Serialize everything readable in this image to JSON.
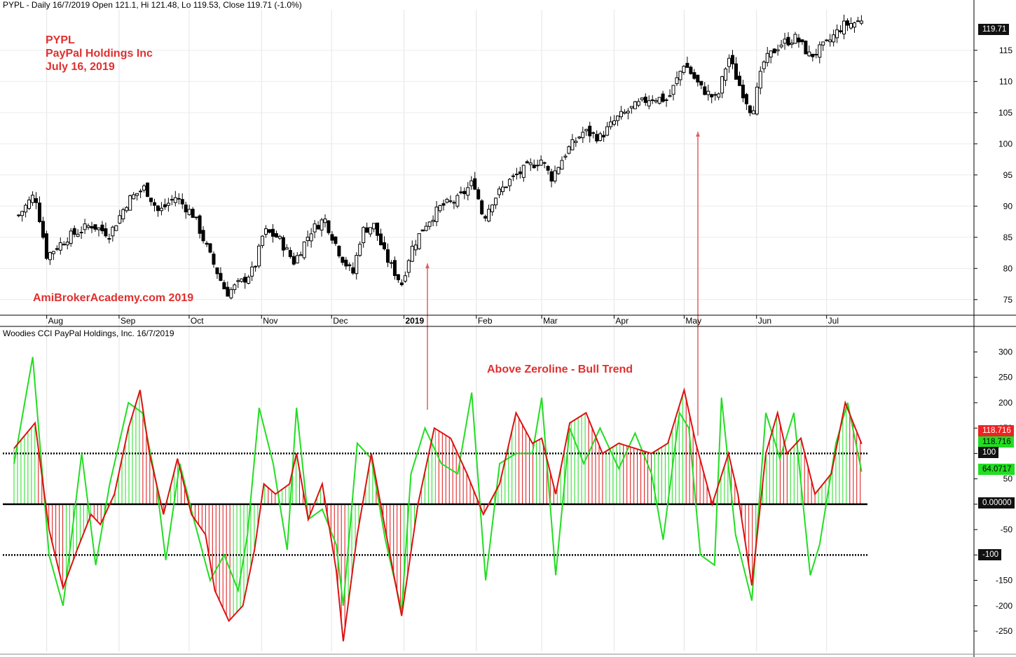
{
  "price_panel": {
    "header": "PYPL - Daily 16/7/2019 Open 121.1, Hi 121.48, Lo 119.53, Close 119.71 (-1.0%)",
    "annotation_lines": [
      "PYPL",
      "PayPal Holdings Inc",
      "July 16, 2019"
    ],
    "watermark": "AmiBrokerAcademy.com   2019",
    "last_price_label": "119.71"
  },
  "cci_panel": {
    "header": "Woodies CCI  PayPal Holdings, Inc. 16/7/2019",
    "annotation": "Above Zeroline - Bull Trend",
    "value_labels": {
      "cci_red": "118.716",
      "cci_green": "118.716",
      "turbo": "64.0717",
      "zero": "0.00000",
      "upper": "100",
      "lower": "-100"
    }
  },
  "colors": {
    "cci_line": "#dd1111",
    "turbo_line": "#22dd22",
    "annotation_text": "#e03030",
    "arrow": "#e06060",
    "badge_dark": "#111111",
    "badge_red": "#ee2222",
    "badge_green": "#22dd22"
  },
  "chart_data": [
    {
      "type": "candlestick",
      "title": "PYPL - Daily 16/7/2019",
      "x_tick_labels": [
        "Aug",
        "Sep",
        "Oct",
        "Nov",
        "Dec",
        "2019",
        "Feb",
        "Mar",
        "Apr",
        "May",
        "Jun",
        "Jul"
      ],
      "y_ticks": [
        75,
        80,
        85,
        90,
        95,
        100,
        105,
        110,
        115
      ],
      "ylim": [
        72.5,
        121.5
      ],
      "last_close": 119.71,
      "close_path": [
        {
          "date": "2018-07-20",
          "close": 88.5
        },
        {
          "date": "2018-07-27",
          "close": 92
        },
        {
          "date": "2018-08-01",
          "close": 82
        },
        {
          "date": "2018-08-10",
          "close": 85
        },
        {
          "date": "2018-08-20",
          "close": 87
        },
        {
          "date": "2018-08-28",
          "close": 85.5
        },
        {
          "date": "2018-09-05",
          "close": 91
        },
        {
          "date": "2018-09-12",
          "close": 93
        },
        {
          "date": "2018-09-18",
          "close": 89
        },
        {
          "date": "2018-09-25",
          "close": 91.5
        },
        {
          "date": "2018-10-03",
          "close": 88.5
        },
        {
          "date": "2018-10-10",
          "close": 82
        },
        {
          "date": "2018-10-17",
          "close": 76
        },
        {
          "date": "2018-10-24",
          "close": 78
        },
        {
          "date": "2018-10-29",
          "close": 80
        },
        {
          "date": "2018-11-02",
          "close": 86
        },
        {
          "date": "2018-11-08",
          "close": 85
        },
        {
          "date": "2018-11-15",
          "close": 81
        },
        {
          "date": "2018-11-22",
          "close": 86
        },
        {
          "date": "2018-11-28",
          "close": 88
        },
        {
          "date": "2018-12-05",
          "close": 82
        },
        {
          "date": "2018-12-10",
          "close": 79
        },
        {
          "date": "2018-12-14",
          "close": 86
        },
        {
          "date": "2018-12-19",
          "close": 87
        },
        {
          "date": "2018-12-24",
          "close": 82
        },
        {
          "date": "2018-12-31",
          "close": 77.5
        },
        {
          "date": "2019-01-04",
          "close": 83
        },
        {
          "date": "2019-01-10",
          "close": 87
        },
        {
          "date": "2019-01-17",
          "close": 90
        },
        {
          "date": "2019-01-24",
          "close": 91
        },
        {
          "date": "2019-01-31",
          "close": 94
        },
        {
          "date": "2019-02-04",
          "close": 88
        },
        {
          "date": "2019-02-08",
          "close": 91
        },
        {
          "date": "2019-02-15",
          "close": 94
        },
        {
          "date": "2019-02-22",
          "close": 96
        },
        {
          "date": "2019-03-01",
          "close": 97.5
        },
        {
          "date": "2019-03-05",
          "close": 94.5
        },
        {
          "date": "2019-03-12",
          "close": 99
        },
        {
          "date": "2019-03-19",
          "close": 102
        },
        {
          "date": "2019-03-26",
          "close": 101
        },
        {
          "date": "2019-04-02",
          "close": 104
        },
        {
          "date": "2019-04-10",
          "close": 106
        },
        {
          "date": "2019-04-17",
          "close": 107.5
        },
        {
          "date": "2019-04-24",
          "close": 107
        },
        {
          "date": "2019-05-01",
          "close": 113
        },
        {
          "date": "2019-05-08",
          "close": 109
        },
        {
          "date": "2019-05-15",
          "close": 107
        },
        {
          "date": "2019-05-20",
          "close": 114
        },
        {
          "date": "2019-05-24",
          "close": 110
        },
        {
          "date": "2019-05-30",
          "close": 105
        },
        {
          "date": "2019-06-04",
          "close": 113
        },
        {
          "date": "2019-06-11",
          "close": 116
        },
        {
          "date": "2019-06-18",
          "close": 117
        },
        {
          "date": "2019-06-24",
          "close": 114
        },
        {
          "date": "2019-07-01",
          "close": 116
        },
        {
          "date": "2019-07-08",
          "close": 119
        },
        {
          "date": "2019-07-16",
          "close": 119.71
        }
      ]
    },
    {
      "type": "line",
      "title": "Woodies CCI",
      "x_tick_labels": [
        "Aug",
        "Sep",
        "Oct",
        "Nov",
        "Dec",
        "2019",
        "Feb",
        "Mar",
        "Apr",
        "May",
        "Jun",
        "Jul"
      ],
      "y_ticks": [
        -250,
        -200,
        -150,
        -100,
        -50,
        0,
        50,
        100,
        150,
        200,
        250,
        300
      ],
      "ylim": [
        -290,
        320
      ],
      "reference_lines": [
        100,
        0,
        -100
      ],
      "histogram": "CCI bars from zero; green above the previous bar's trend, red otherwise",
      "series": [
        {
          "name": "CCI",
          "color": "#dd1111",
          "points": [
            {
              "date": "2018-07-18",
              "cci": 110
            },
            {
              "date": "2018-07-27",
              "cci": 160
            },
            {
              "date": "2018-08-02",
              "cci": -50
            },
            {
              "date": "2018-08-08",
              "cci": -165
            },
            {
              "date": "2018-08-14",
              "cci": -90
            },
            {
              "date": "2018-08-20",
              "cci": -20
            },
            {
              "date": "2018-08-24",
              "cci": -40
            },
            {
              "date": "2018-08-30",
              "cci": 20
            },
            {
              "date": "2018-09-05",
              "cci": 150
            },
            {
              "date": "2018-09-10",
              "cci": 225
            },
            {
              "date": "2018-09-14",
              "cci": 100
            },
            {
              "date": "2018-09-20",
              "cci": -20
            },
            {
              "date": "2018-09-26",
              "cci": 90
            },
            {
              "date": "2018-10-02",
              "cci": -20
            },
            {
              "date": "2018-10-08",
              "cci": -60
            },
            {
              "date": "2018-10-12",
              "cci": -170
            },
            {
              "date": "2018-10-18",
              "cci": -230
            },
            {
              "date": "2018-10-24",
              "cci": -200
            },
            {
              "date": "2018-10-29",
              "cci": -90
            },
            {
              "date": "2018-11-02",
              "cci": 40
            },
            {
              "date": "2018-11-07",
              "cci": 20
            },
            {
              "date": "2018-11-13",
              "cci": 40
            },
            {
              "date": "2018-11-16",
              "cci": 100
            },
            {
              "date": "2018-11-21",
              "cci": -30
            },
            {
              "date": "2018-11-27",
              "cci": 40
            },
            {
              "date": "2018-12-03",
              "cci": -130
            },
            {
              "date": "2018-12-06",
              "cci": -270
            },
            {
              "date": "2018-12-12",
              "cci": -60
            },
            {
              "date": "2018-12-18",
              "cci": 100
            },
            {
              "date": "2018-12-24",
              "cci": -50
            },
            {
              "date": "2018-12-31",
              "cci": -220
            },
            {
              "date": "2019-01-07",
              "cci": 0
            },
            {
              "date": "2019-01-14",
              "cci": 150
            },
            {
              "date": "2019-01-21",
              "cci": 130
            },
            {
              "date": "2019-01-28",
              "cci": 60
            },
            {
              "date": "2019-02-04",
              "cci": -20
            },
            {
              "date": "2019-02-11",
              "cci": 40
            },
            {
              "date": "2019-02-18",
              "cci": 180
            },
            {
              "date": "2019-02-25",
              "cci": 120
            },
            {
              "date": "2019-03-01",
              "cci": 130
            },
            {
              "date": "2019-03-07",
              "cci": 20
            },
            {
              "date": "2019-03-13",
              "cci": 160
            },
            {
              "date": "2019-03-20",
              "cci": 180
            },
            {
              "date": "2019-03-27",
              "cci": 100
            },
            {
              "date": "2019-04-03",
              "cci": 120
            },
            {
              "date": "2019-04-10",
              "cci": 110
            },
            {
              "date": "2019-04-17",
              "cci": 100
            },
            {
              "date": "2019-04-24",
              "cci": 120
            },
            {
              "date": "2019-05-01",
              "cci": 225
            },
            {
              "date": "2019-05-06",
              "cci": 120
            },
            {
              "date": "2019-05-13",
              "cci": 0
            },
            {
              "date": "2019-05-20",
              "cci": 100
            },
            {
              "date": "2019-05-24",
              "cci": 20
            },
            {
              "date": "2019-05-30",
              "cci": -160
            },
            {
              "date": "2019-06-05",
              "cci": 100
            },
            {
              "date": "2019-06-10",
              "cci": 180
            },
            {
              "date": "2019-06-14",
              "cci": 100
            },
            {
              "date": "2019-06-20",
              "cci": 130
            },
            {
              "date": "2019-06-26",
              "cci": 20
            },
            {
              "date": "2019-07-03",
              "cci": 60
            },
            {
              "date": "2019-07-09",
              "cci": 200
            },
            {
              "date": "2019-07-16",
              "cci": 118.716
            }
          ]
        },
        {
          "name": "Turbo CCI",
          "color": "#22dd22",
          "points": [
            {
              "date": "2018-07-18",
              "turbo": 80
            },
            {
              "date": "2018-07-26",
              "turbo": 290
            },
            {
              "date": "2018-08-02",
              "turbo": -100
            },
            {
              "date": "2018-08-08",
              "turbo": -200
            },
            {
              "date": "2018-08-16",
              "turbo": 100
            },
            {
              "date": "2018-08-22",
              "turbo": -120
            },
            {
              "date": "2018-08-28",
              "turbo": 40
            },
            {
              "date": "2018-09-05",
              "turbo": 200
            },
            {
              "date": "2018-09-11",
              "turbo": 180
            },
            {
              "date": "2018-09-17",
              "turbo": 40
            },
            {
              "date": "2018-09-21",
              "turbo": -110
            },
            {
              "date": "2018-09-27",
              "turbo": 80
            },
            {
              "date": "2018-10-03",
              "turbo": -30
            },
            {
              "date": "2018-10-10",
              "turbo": -150
            },
            {
              "date": "2018-10-16",
              "turbo": -100
            },
            {
              "date": "2018-10-22",
              "turbo": -170
            },
            {
              "date": "2018-10-26",
              "turbo": -60
            },
            {
              "date": "2018-10-31",
              "turbo": 190
            },
            {
              "date": "2018-11-06",
              "turbo": 80
            },
            {
              "date": "2018-11-12",
              "turbo": -90
            },
            {
              "date": "2018-11-16",
              "turbo": 190
            },
            {
              "date": "2018-11-21",
              "turbo": -30
            },
            {
              "date": "2018-11-27",
              "turbo": -10
            },
            {
              "date": "2018-12-03",
              "turbo": -80
            },
            {
              "date": "2018-12-06",
              "turbo": -200
            },
            {
              "date": "2018-12-12",
              "turbo": 120
            },
            {
              "date": "2018-12-18",
              "turbo": 90
            },
            {
              "date": "2018-12-24",
              "turbo": -70
            },
            {
              "date": "2018-12-31",
              "turbo": -210
            },
            {
              "date": "2019-01-04",
              "turbo": 60
            },
            {
              "date": "2019-01-10",
              "turbo": 150
            },
            {
              "date": "2019-01-17",
              "turbo": 80
            },
            {
              "date": "2019-01-24",
              "turbo": 60
            },
            {
              "date": "2019-01-30",
              "turbo": 220
            },
            {
              "date": "2019-02-05",
              "turbo": -150
            },
            {
              "date": "2019-02-11",
              "turbo": 80
            },
            {
              "date": "2019-02-18",
              "turbo": 100
            },
            {
              "date": "2019-02-25",
              "turbo": 100
            },
            {
              "date": "2019-03-01",
              "turbo": 210
            },
            {
              "date": "2019-03-07",
              "turbo": -140
            },
            {
              "date": "2019-03-13",
              "turbo": 150
            },
            {
              "date": "2019-03-19",
              "turbo": 80
            },
            {
              "date": "2019-03-26",
              "turbo": 150
            },
            {
              "date": "2019-04-03",
              "turbo": 70
            },
            {
              "date": "2019-04-10",
              "turbo": 140
            },
            {
              "date": "2019-04-17",
              "turbo": 60
            },
            {
              "date": "2019-04-22",
              "turbo": -70
            },
            {
              "date": "2019-04-29",
              "turbo": 180
            },
            {
              "date": "2019-05-03",
              "turbo": 150
            },
            {
              "date": "2019-05-08",
              "turbo": -100
            },
            {
              "date": "2019-05-14",
              "turbo": -120
            },
            {
              "date": "2019-05-17",
              "turbo": 210
            },
            {
              "date": "2019-05-23",
              "turbo": -60
            },
            {
              "date": "2019-05-30",
              "turbo": -190
            },
            {
              "date": "2019-06-05",
              "turbo": 180
            },
            {
              "date": "2019-06-11",
              "turbo": 90
            },
            {
              "date": "2019-06-17",
              "turbo": 180
            },
            {
              "date": "2019-06-24",
              "turbo": -140
            },
            {
              "date": "2019-06-28",
              "turbo": -80
            },
            {
              "date": "2019-07-05",
              "turbo": 120
            },
            {
              "date": "2019-07-10",
              "turbo": 200
            },
            {
              "date": "2019-07-16",
              "turbo": 64.0717
            }
          ]
        }
      ]
    }
  ]
}
